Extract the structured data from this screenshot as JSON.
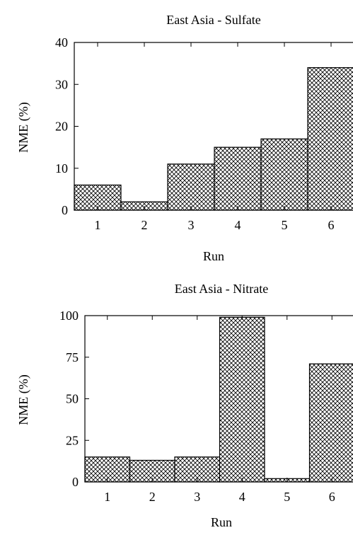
{
  "chart_data": [
    {
      "type": "bar",
      "title": "East Asia - Sulfate",
      "xlabel": "Run",
      "ylabel": "NME (%)",
      "categories": [
        "1",
        "2",
        "3",
        "4",
        "5",
        "6"
      ],
      "values": [
        6,
        2,
        11,
        15,
        17,
        34
      ],
      "ylim": [
        0,
        40
      ],
      "yticks": [
        0,
        10,
        20,
        30,
        40
      ],
      "grid": false,
      "fill_pattern": "crosshatch",
      "bar_color": "#000000"
    },
    {
      "type": "bar",
      "title": "East Asia - Nitrate",
      "xlabel": "Run",
      "ylabel": "NME (%)",
      "categories": [
        "1",
        "2",
        "3",
        "4",
        "5",
        "6"
      ],
      "values": [
        15,
        13,
        15,
        99,
        2,
        71
      ],
      "ylim": [
        0,
        100
      ],
      "yticks": [
        0,
        25,
        50,
        75,
        100
      ],
      "grid": false,
      "fill_pattern": "crosshatch",
      "bar_color": "#000000"
    }
  ]
}
